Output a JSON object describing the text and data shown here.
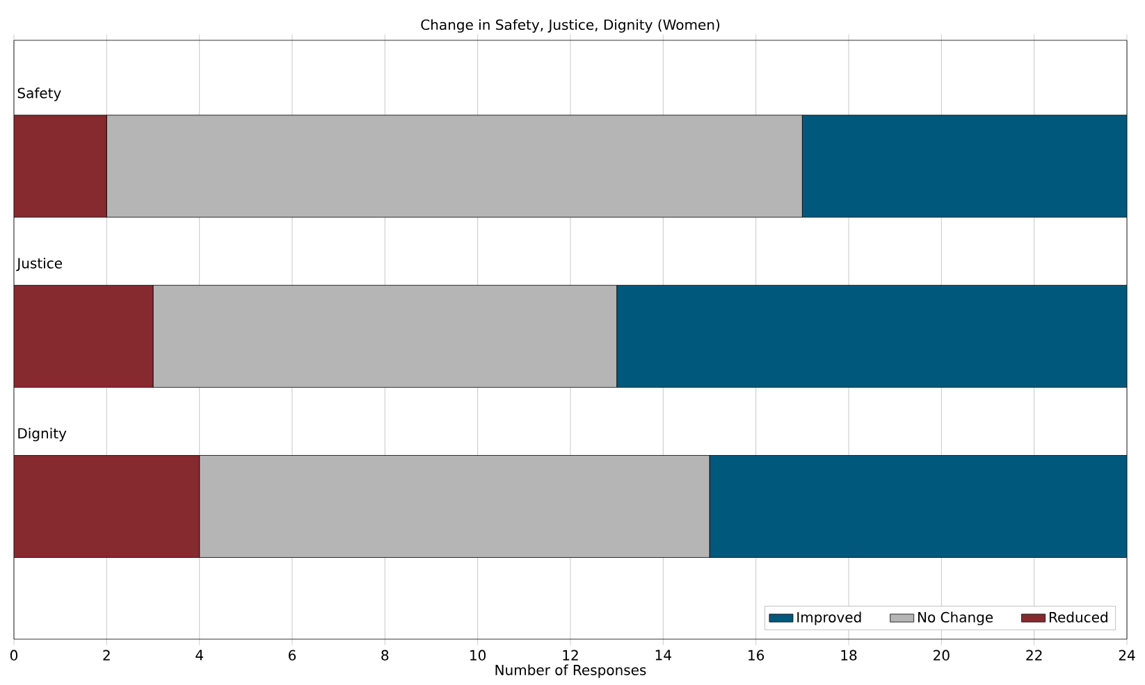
{
  "chart_data": {
    "type": "bar",
    "orientation": "horizontal",
    "stacked": true,
    "title": "Change in Safety, Justice, Dignity (Women)",
    "xlabel": "Number of Responses",
    "categories": [
      "Safety",
      "Justice",
      "Dignity"
    ],
    "series": [
      {
        "name": "Reduced",
        "color": "#862a30",
        "values": [
          2,
          3,
          4
        ]
      },
      {
        "name": "No Change",
        "color": "#b5b5b6",
        "values": [
          15,
          10,
          11
        ]
      },
      {
        "name": "Improved",
        "color": "#00587c",
        "values": [
          7,
          11,
          9
        ]
      }
    ],
    "xlim": [
      0,
      24
    ],
    "xticks": [
      0,
      2,
      4,
      6,
      8,
      10,
      12,
      14,
      16,
      18,
      20,
      22,
      24
    ],
    "grid": "x",
    "legend": "bottom right"
  }
}
